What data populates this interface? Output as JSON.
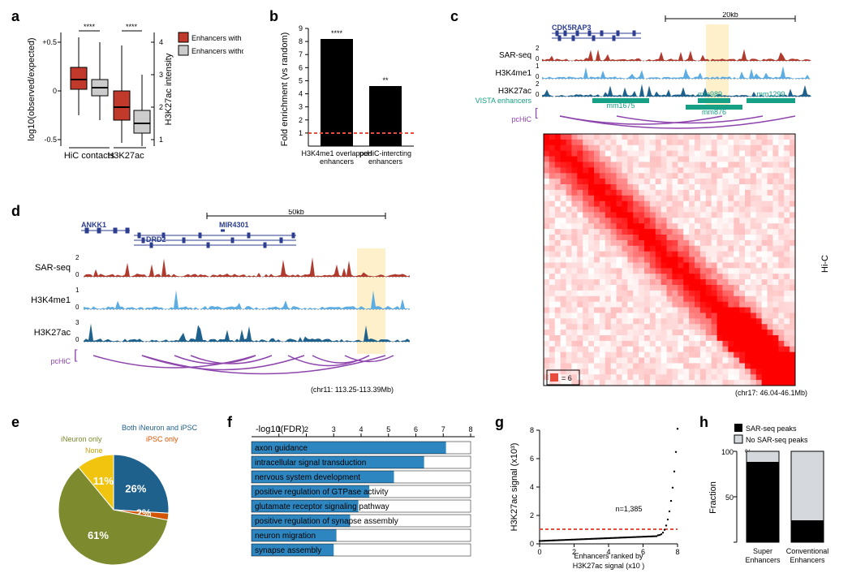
{
  "panel_labels": {
    "a": "a",
    "b": "b",
    "c": "c",
    "d": "d",
    "e": "e",
    "f": "f",
    "g": "g",
    "h": "h"
  },
  "a": {
    "legend": {
      "with": "Enhancers with SAR",
      "without": "Enhancers without SAR"
    },
    "legend_colors": {
      "with": "#c0392b",
      "without": "#cccccc"
    },
    "y_left_label": "log10(observed/expected)",
    "y_right_label": "H3K27ac intensity",
    "x_categories": [
      "HiC contacts",
      "H3K27ac"
    ],
    "left_ticks": [
      "+0.5",
      "0",
      "-0.5"
    ],
    "right_ticks": [
      "4",
      "3",
      "2",
      "1"
    ],
    "significance": "****",
    "boxes": {
      "hic_with": {
        "q1": 0.02,
        "med": 0.12,
        "q3": 0.24,
        "wlo": -0.25,
        "whi": 0.55,
        "color": "#c0392b"
      },
      "hic_without": {
        "q1": -0.05,
        "med": 0.03,
        "q3": 0.12,
        "wlo": -0.3,
        "whi": 0.5,
        "color": "#cccccc"
      },
      "ac_with": {
        "q1": 1.6,
        "med": 2.0,
        "q3": 2.5,
        "wlo": 0.9,
        "whi": 3.9,
        "color": "#c0392b"
      },
      "ac_without": {
        "q1": 1.2,
        "med": 1.5,
        "q3": 1.9,
        "wlo": 0.7,
        "whi": 3.0,
        "color": "#cccccc"
      }
    }
  },
  "b": {
    "ylabel": "Fold enrichment (vs random)",
    "yticks": [
      1,
      2,
      3,
      4,
      5,
      6,
      7,
      8,
      9
    ],
    "categories": [
      "H3K4me1 overlapped\nenhancers",
      "pcHiC-intercting\nenhancers"
    ],
    "values": [
      8.2,
      4.6
    ],
    "sig": [
      "****",
      "**"
    ],
    "bar_color": "#000000",
    "ref_line": 1,
    "ref_color": "#e74c3c"
  },
  "c": {
    "scale_label": "20kb",
    "gene": "CDK5RAP3",
    "tracks": [
      {
        "name": "SAR-seq",
        "max": 2,
        "color": "#b03a2e"
      },
      {
        "name": "H3K4me1",
        "max": 1,
        "color": "#5dade2"
      },
      {
        "name": "H3K27ac",
        "max": 2,
        "color": "#1f618d"
      }
    ],
    "vista_label": "VISTA enhancers",
    "vista_color": "#16a085",
    "vista_items": [
      "mm1675",
      "mm989",
      "mm876",
      "mm1299"
    ],
    "pchic_label": "pcHiC",
    "pchic_color": "#8e44ad",
    "hic_label": "Hi-C",
    "hic_legend_value": "= 6",
    "hic_legend_box_color": "#e74c3c",
    "coords": "(chr17: 46.04-46.1Mb)",
    "heatmap_size": 45,
    "heatmap_color_hi": "#ff0000",
    "heatmap_color_lo": "#ffffff"
  },
  "d": {
    "scale_label": "50kb",
    "genes": [
      "ANKK1",
      "MIR4301",
      "DRD2"
    ],
    "tracks": [
      {
        "name": "SAR-seq",
        "max": 2,
        "color": "#b03a2e"
      },
      {
        "name": "H3K4me1",
        "max": 1,
        "color": "#5dade2"
      },
      {
        "name": "H3K27ac",
        "max": 3,
        "color": "#1f618d"
      }
    ],
    "pchic_label": "pcHiC",
    "pchic_color": "#8e44ad",
    "coords": "(chr11: 113.25-113.39Mb)"
  },
  "e": {
    "labels": {
      "both": "Both iNeuron and iPSC",
      "ineuron": "iNeuron only",
      "ipsc": "iPSC only",
      "none": "None"
    },
    "colors": {
      "both": "#1f618d",
      "ineuron": "#7d8a2e",
      "ipsc": "#d35400",
      "none": "#f1c40f"
    },
    "values": {
      "both": 26,
      "ineuron": 61,
      "ipsc": 2,
      "none": 11
    }
  },
  "f": {
    "xlabel": "-log10(FDR)",
    "xticks": [
      1,
      2,
      3,
      4,
      5,
      6,
      7,
      8
    ],
    "bar_color": "#2e86c1",
    "terms": [
      {
        "label": "axon guidance",
        "value": 7.1
      },
      {
        "label": "intracellular signal transduction",
        "value": 6.3
      },
      {
        "label": "nervous system development",
        "value": 5.2
      },
      {
        "label": "positive regulation of GTPase activity",
        "value": 4.3
      },
      {
        "label": "glutamate receptor signaling pathway",
        "value": 3.9
      },
      {
        "label": "positive regulation of synapse assembly",
        "value": 3.6
      },
      {
        "label": "neuron migration",
        "value": 3.1
      },
      {
        "label": "synapse assembly",
        "value": 3.0
      }
    ]
  },
  "g": {
    "ylabel": "H3K27ac signal (x10³)",
    "xlabel": "Enhancers ranked by\nH3K27ac signal (x10 )",
    "yticks": [
      0,
      2,
      4,
      6,
      8
    ],
    "xticks": [
      0,
      2,
      4,
      6,
      8
    ],
    "n_label": "n=1,385",
    "threshold_y": 1.0,
    "threshold_color": "#e74c3c",
    "point_color": "#000000"
  },
  "h": {
    "legend": {
      "with": "SAR-seq peaks",
      "without": "No SAR-seq peaks"
    },
    "colors": {
      "with": "#000000",
      "without": "#d5d8dc"
    },
    "ylabel": "Fraction",
    "yticks": [
      "100",
      "50",
      "0"
    ],
    "percent": "%",
    "categories": [
      "Super\nEnhancers",
      "Conventional\nEnhancers"
    ],
    "values": {
      "super_with": 88,
      "conv_with": 24
    }
  }
}
